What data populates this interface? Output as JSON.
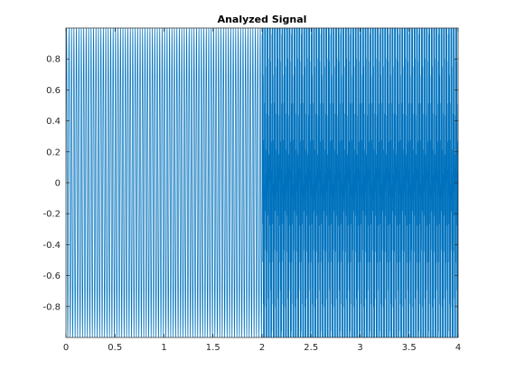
{
  "figure": {
    "background": "#ffffff"
  },
  "chart_data": {
    "type": "line",
    "title": "Analyzed Signal",
    "xlabel": "",
    "ylabel": "",
    "xlim": [
      0,
      4
    ],
    "ylim": [
      -1,
      1
    ],
    "x_ticks": [
      0,
      0.5,
      1,
      1.5,
      2,
      2.5,
      3,
      3.5,
      4
    ],
    "x_tick_labels": [
      "0",
      "0.5",
      "1",
      "1.5",
      "2",
      "2.5",
      "3",
      "3.5",
      "4"
    ],
    "y_ticks": [
      -0.8,
      -0.6,
      -0.4,
      -0.2,
      0,
      0.2,
      0.4,
      0.6,
      0.8
    ],
    "y_tick_labels": [
      "-0.8",
      "-0.6",
      "-0.4",
      "-0.2",
      "0",
      "0.2",
      "0.4",
      "0.6",
      "0.8"
    ],
    "grid": false,
    "axes_color": "#262626",
    "series": [
      {
        "color": "#0072bd",
        "segments": [
          {
            "t_start": 0,
            "t_end": 2,
            "description": "single sinusoid",
            "frequency_hz": 40,
            "amplitude": 1
          },
          {
            "t_start": 2,
            "t_end": 4,
            "description": "sum of two sinusoids",
            "frequencies_hz": [
              40,
              400
            ],
            "amplitude": 1
          }
        ]
      }
    ]
  }
}
